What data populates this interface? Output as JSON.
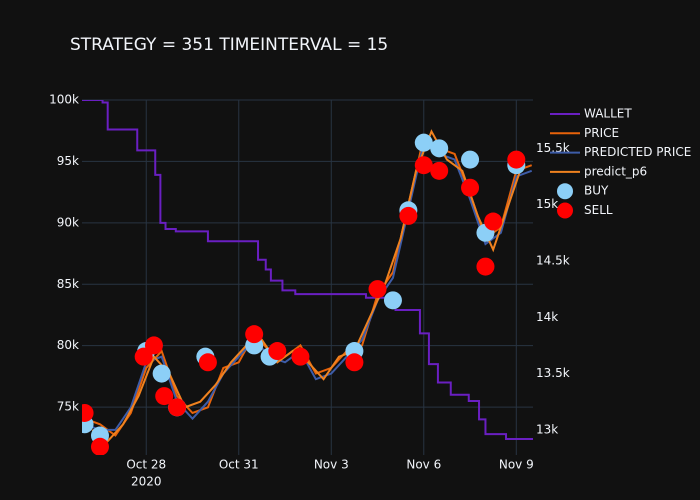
{
  "chart_data": {
    "type": "line",
    "title": "STRATEGY = 351 TIMEINTERVAL = 15",
    "xlim": [
      "2020-10-25T22:00",
      "2020-11-09T13:00"
    ],
    "xticks": [
      {
        "value": "2020-10-28",
        "label": "Oct 28"
      },
      {
        "value": "2020-10-31",
        "label": "Oct 31"
      },
      {
        "value": "2020-11-03",
        "label": "Nov 3"
      },
      {
        "value": "2020-11-06",
        "label": "Nov 6"
      },
      {
        "value": "2020-11-09",
        "label": "Nov 9"
      }
    ],
    "x_year_label": "2020",
    "ylim": [
      71100,
      100000
    ],
    "yticks": [
      {
        "value": 75000,
        "label": "75k"
      },
      {
        "value": 80000,
        "label": "80k"
      },
      {
        "value": 85000,
        "label": "85k"
      },
      {
        "value": 90000,
        "label": "90k"
      },
      {
        "value": 95000,
        "label": "95k"
      },
      {
        "value": 100000,
        "label": "100k"
      }
    ],
    "y2lim": [
      12777,
      15929
    ],
    "y2ticks": [
      {
        "value": 13000,
        "label": "13k"
      },
      {
        "value": 13500,
        "label": "13.5k"
      },
      {
        "value": 14000,
        "label": "14k"
      },
      {
        "value": 14500,
        "label": "14.5k"
      },
      {
        "value": 15000,
        "label": "15k"
      },
      {
        "value": 15500,
        "label": "15.5k"
      }
    ],
    "grid": true,
    "legend": "right",
    "series": [
      {
        "name": "WALLET",
        "color": "#6a1fc2",
        "mode": "lines",
        "line_shape": "hv",
        "x": [
          "2020-10-25T22:00",
          "2020-10-26T14:00",
          "2020-10-26T18:00",
          "2020-10-27T17:00",
          "2020-10-28T05:00",
          "2020-10-28T07:00",
          "2020-10-28T11:00",
          "2020-10-28T15:00",
          "2020-10-28T23:00",
          "2020-10-29T22:00",
          "2020-10-30T00:00",
          "2020-10-31T11:00",
          "2020-10-31T15:00",
          "2020-10-31T21:00",
          "2020-11-01T01:00",
          "2020-11-01T10:00",
          "2020-11-01T20:00",
          "2020-11-03T19:00",
          "2020-11-04T03:00",
          "2020-11-04T18:00",
          "2020-11-05T02:00",
          "2020-11-05T10:00",
          "2020-11-05T21:00",
          "2020-11-06T04:00",
          "2020-11-06T11:00",
          "2020-11-06T21:00",
          "2020-11-07T11:00",
          "2020-11-07T19:00",
          "2020-11-08T00:00",
          "2020-11-08T16:00",
          "2020-11-09T13:00"
        ],
        "values": [
          100000,
          99800,
          97600,
          95900,
          95900,
          93900,
          90000,
          89500,
          89300,
          89300,
          88500,
          88500,
          87000,
          86200,
          85300,
          84500,
          84200,
          84200,
          83900,
          83900,
          82900,
          82900,
          81000,
          78500,
          77000,
          76000,
          75500,
          74000,
          72800,
          72400,
          72400
        ]
      },
      {
        "name": "PRICE",
        "color": "#e8630a",
        "mode": "lines",
        "axis": "y2",
        "x": [
          "2020-10-26T00:00",
          "2020-10-26T12:00",
          "2020-10-27T00:00",
          "2020-10-27T12:00",
          "2020-10-28T00:00",
          "2020-10-28T12:00",
          "2020-10-29T00:00",
          "2020-10-29T12:00",
          "2020-10-30T00:00",
          "2020-10-30T12:00",
          "2020-10-31T00:00",
          "2020-10-31T12:00",
          "2020-11-01T00:00",
          "2020-11-01T12:00",
          "2020-11-02T00:00",
          "2020-11-02T12:00",
          "2020-11-03T00:00",
          "2020-11-03T12:00",
          "2020-11-04T00:00",
          "2020-11-04T12:00",
          "2020-11-05T00:00",
          "2020-11-05T12:00",
          "2020-11-06T00:00",
          "2020-11-06T12:00",
          "2020-11-07T00:00",
          "2020-11-07T12:00",
          "2020-11-08T00:00",
          "2020-11-08T12:00",
          "2020-11-09T00:00",
          "2020-11-09T12:00"
        ],
        "values": [
          13100,
          13050,
          12950,
          13150,
          13550,
          13700,
          13300,
          13150,
          13200,
          13550,
          13600,
          13850,
          13700,
          13650,
          13750,
          13500,
          13550,
          13700,
          13750,
          14200,
          14400,
          15000,
          15600,
          15500,
          15450,
          15100,
          14700,
          14800,
          15300,
          15350
        ]
      },
      {
        "name": "PREDICTED PRICE",
        "color": "#3d5ca8",
        "mode": "lines",
        "axis": "y2",
        "x": [
          "2020-10-26T00:00",
          "2020-10-26T12:00",
          "2020-10-27T00:00",
          "2020-10-27T12:00",
          "2020-10-28T00:00",
          "2020-10-28T12:00",
          "2020-10-29T00:00",
          "2020-10-29T12:00",
          "2020-10-30T00:00",
          "2020-10-30T12:00",
          "2020-10-31T00:00",
          "2020-10-31T12:00",
          "2020-11-01T00:00",
          "2020-11-01T12:00",
          "2020-11-02T00:00",
          "2020-11-02T12:00",
          "2020-11-03T00:00",
          "2020-11-03T12:00",
          "2020-11-04T00:00",
          "2020-11-04T12:00",
          "2020-11-05T00:00",
          "2020-11-05T12:00",
          "2020-11-06T00:00",
          "2020-11-06T12:00",
          "2020-11-07T00:00",
          "2020-11-07T12:00",
          "2020-11-08T00:00",
          "2020-11-08T12:00",
          "2020-11-09T00:00",
          "2020-11-09T12:00"
        ],
        "values": [
          13050,
          13000,
          13000,
          13200,
          13600,
          13650,
          13250,
          13100,
          13250,
          13500,
          13650,
          13800,
          13650,
          13600,
          13700,
          13450,
          13500,
          13650,
          13800,
          14150,
          14350,
          14950,
          15550,
          15450,
          15400,
          15050,
          14650,
          14750,
          15250,
          15300
        ]
      },
      {
        "name": "predict_p6",
        "color": "#f0821f",
        "mode": "lines",
        "axis": "y2",
        "x": [
          "2020-10-26T06:00",
          "2020-10-26T18:00",
          "2020-10-27T06:00",
          "2020-10-27T18:00",
          "2020-10-28T06:00",
          "2020-10-28T18:00",
          "2020-10-29T06:00",
          "2020-10-29T18:00",
          "2020-10-30T06:00",
          "2020-10-30T18:00",
          "2020-10-31T06:00",
          "2020-10-31T18:00",
          "2020-11-01T06:00",
          "2020-11-01T18:00",
          "2020-11-02T06:00",
          "2020-11-02T18:00",
          "2020-11-03T06:00",
          "2020-11-03T18:00",
          "2020-11-04T06:00",
          "2020-11-04T18:00",
          "2020-11-05T06:00",
          "2020-11-05T18:00",
          "2020-11-06T06:00",
          "2020-11-06T18:00",
          "2020-11-07T06:00",
          "2020-11-07T18:00",
          "2020-11-08T06:00",
          "2020-11-08T18:00",
          "2020-11-09T06:00"
        ],
        "values": [
          13000,
          12900,
          13050,
          13300,
          13650,
          13500,
          13200,
          13250,
          13400,
          13600,
          13750,
          13800,
          13600,
          13700,
          13600,
          13450,
          13650,
          13700,
          14000,
          14300,
          14700,
          15300,
          15650,
          15400,
          15300,
          14900,
          14600,
          15000,
          15400
        ]
      },
      {
        "name": "BUY",
        "color": "#8ccff7",
        "mode": "markers",
        "axis": "y2",
        "x": [
          "2020-10-26T00:00",
          "2020-10-26T12:00",
          "2020-10-28T00:00",
          "2020-10-28T12:00",
          "2020-10-29T00:00",
          "2020-10-29T22:00",
          "2020-10-31T12:00",
          "2020-11-01T00:00",
          "2020-11-03T18:00",
          "2020-11-05T00:00",
          "2020-11-05T12:00",
          "2020-11-06T00:00",
          "2020-11-06T12:00",
          "2020-11-07T12:00",
          "2020-11-08T00:00",
          "2020-11-09T00:00"
        ],
        "values": [
          13050,
          12950,
          13700,
          13500,
          13200,
          13650,
          13750,
          13650,
          13700,
          14150,
          14950,
          15550,
          15500,
          15400,
          14750,
          15350
        ]
      },
      {
        "name": "SELL",
        "color": "#ff0000",
        "mode": "markers",
        "axis": "y2",
        "x": [
          "2020-10-26T00:00",
          "2020-10-26T12:00",
          "2020-10-27T22:00",
          "2020-10-28T06:00",
          "2020-10-28T14:00",
          "2020-10-29T00:00",
          "2020-10-30T00:00",
          "2020-10-31T12:00",
          "2020-11-01T06:00",
          "2020-11-02T00:00",
          "2020-11-03T18:00",
          "2020-11-04T12:00",
          "2020-11-05T12:00",
          "2020-11-06T00:00",
          "2020-11-06T12:00",
          "2020-11-07T12:00",
          "2020-11-08T00:00",
          "2020-11-08T06:00",
          "2020-11-09T00:00"
        ],
        "values": [
          13150,
          12850,
          13650,
          13750,
          13300,
          13200,
          13600,
          13850,
          13700,
          13650,
          13600,
          14250,
          14900,
          15350,
          15300,
          15150,
          14450,
          14850,
          15400
        ]
      }
    ]
  }
}
